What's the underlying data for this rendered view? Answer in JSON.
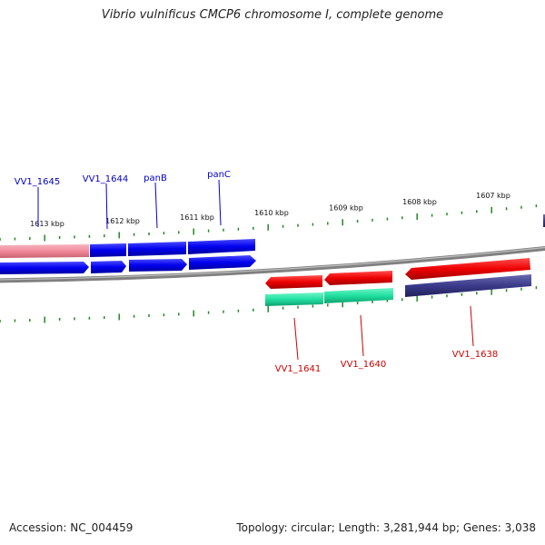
{
  "title": "Vibrio vulnificus CMCP6 chromosome I, complete genome",
  "accession": "Accession: NC_004459",
  "summary": "Topology: circular; Length: 3,281,944 bp; Genes: 3,038",
  "colors": {
    "forward_cds": "#0000ee",
    "forward_cds_faded": "#f08a9a",
    "reverse_cds": "#ee0000",
    "reverse_rna_teal": "#20e0a0",
    "reverse_rna_purple": "#3a3a8a",
    "backbone": "#808080",
    "tick": "#228822",
    "forward_label": "#0000cc",
    "reverse_label": "#cc0000"
  },
  "scale": {
    "ticks": [
      "1613 kbp",
      "1612 kbp",
      "1611 kbp",
      "1610 kbp",
      "1609 kbp",
      "1608 kbp",
      "1607 kbp"
    ]
  },
  "genes": {
    "forward": [
      {
        "name": "VV1_1645"
      },
      {
        "name": "VV1_1644"
      },
      {
        "name": "panB"
      },
      {
        "name": "panC"
      }
    ],
    "reverse": [
      {
        "name": "VV1_1641"
      },
      {
        "name": "VV1_1640"
      },
      {
        "name": "VV1_1638"
      }
    ]
  }
}
